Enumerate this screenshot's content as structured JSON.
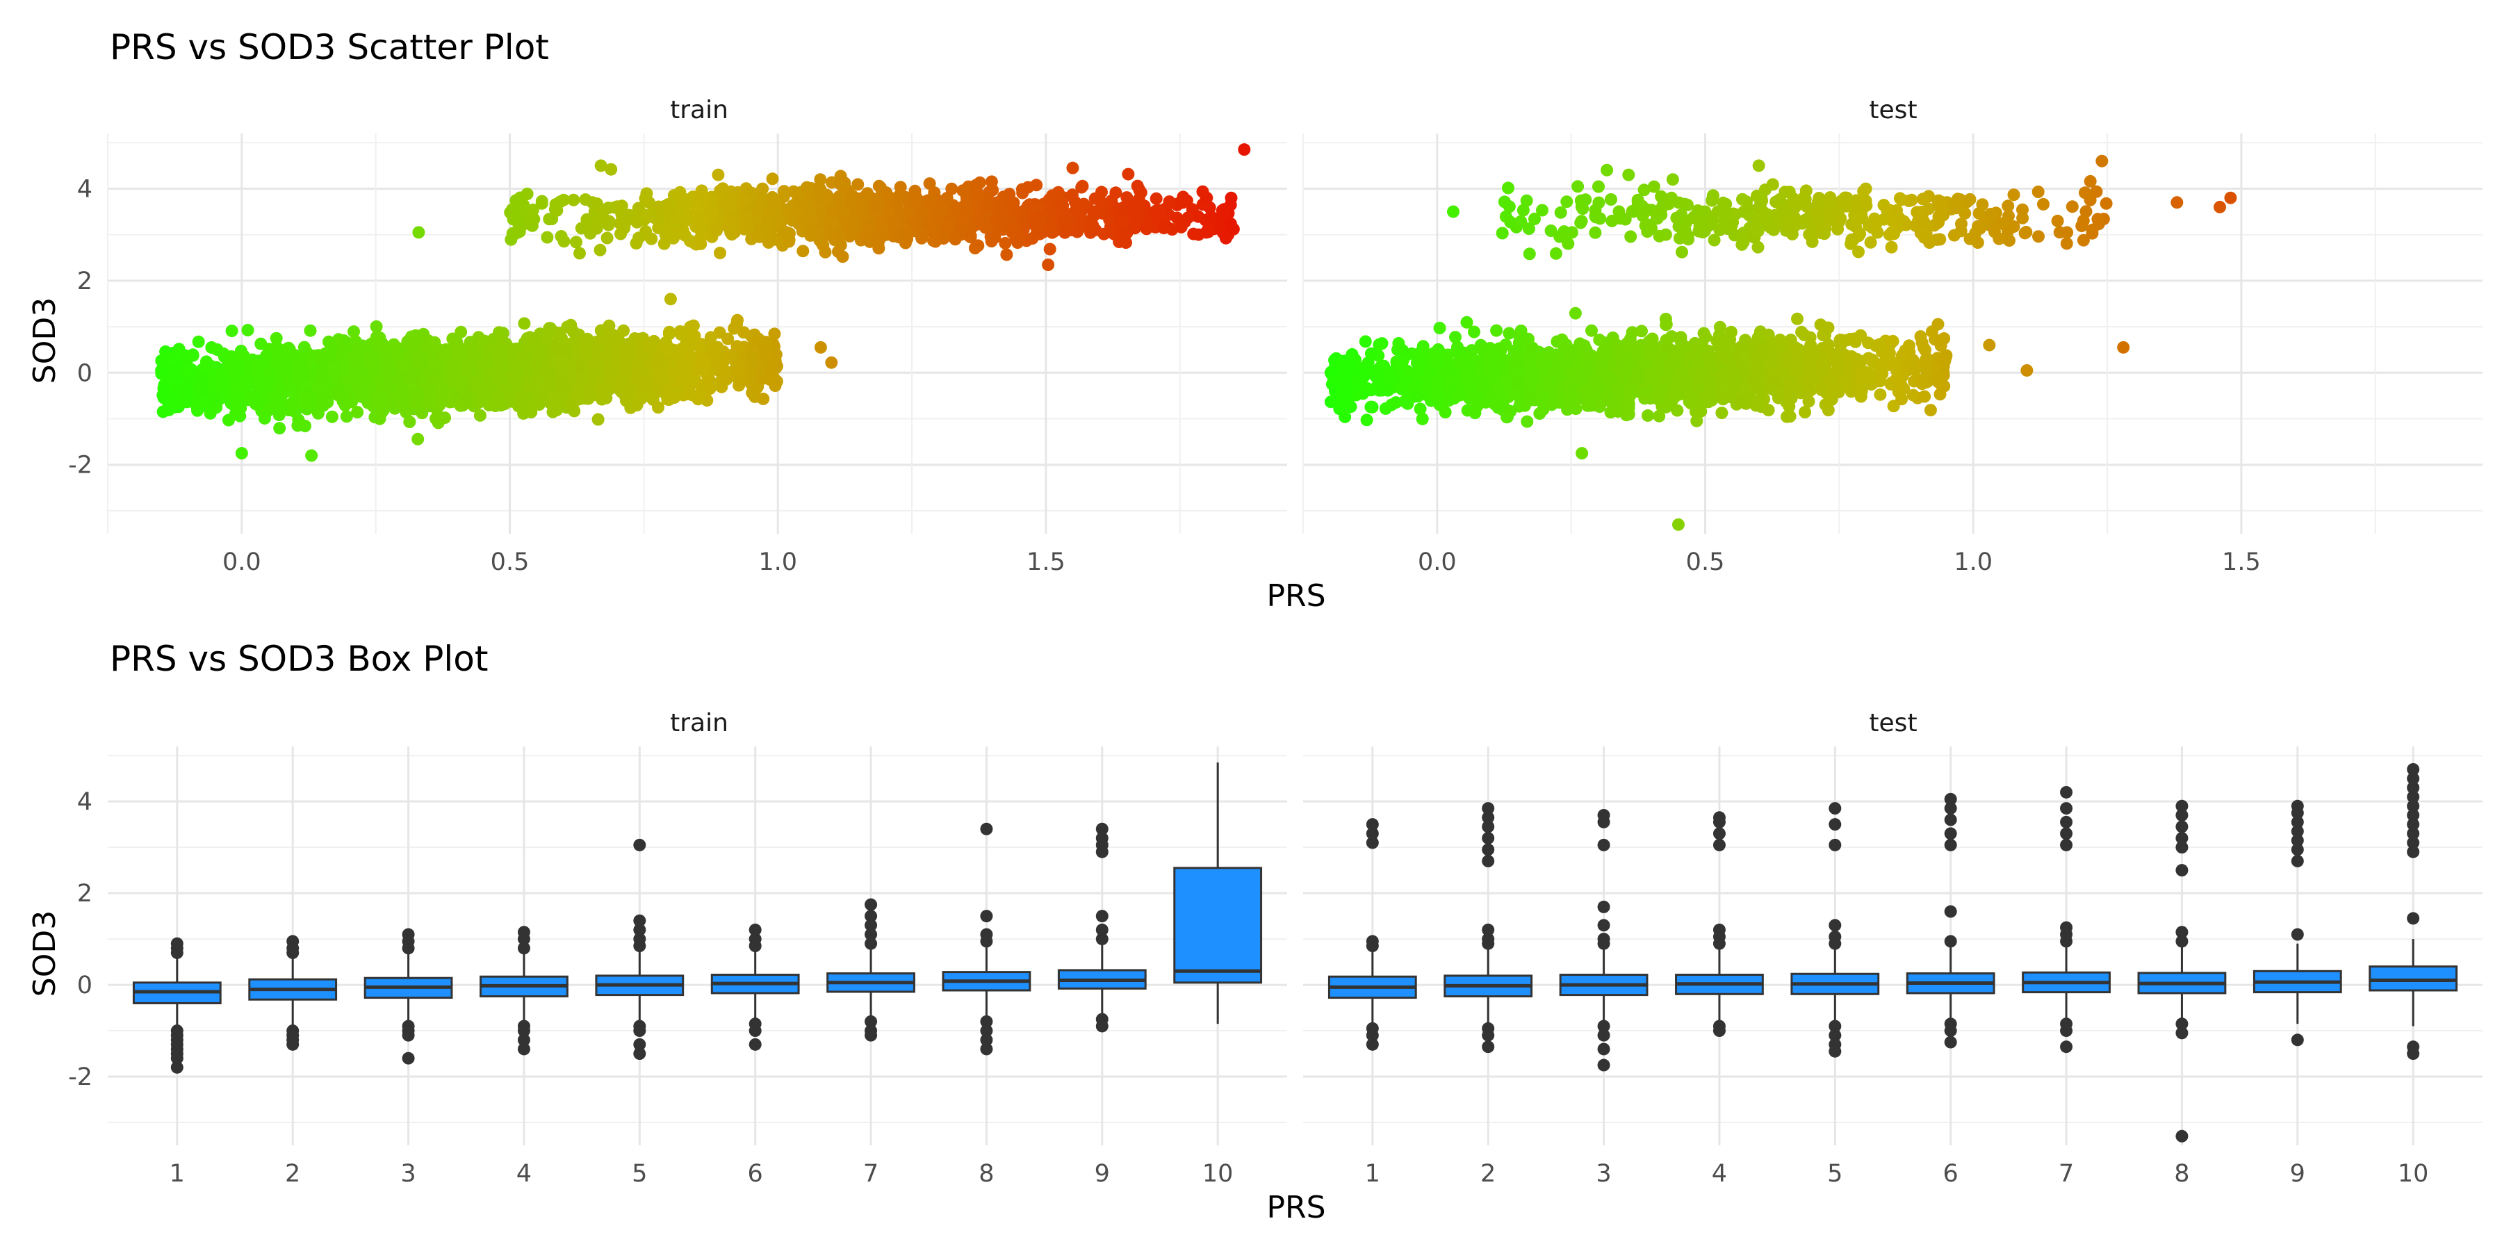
{
  "chart_data": [
    {
      "type": "scatter",
      "title": "PRS vs SOD3 Scatter Plot",
      "xlabel": "PRS",
      "ylabel": "SOD3",
      "xlim": [
        -0.25,
        1.95
      ],
      "ylim": [
        -3.5,
        5.2
      ],
      "x_ticks": [
        0.0,
        0.5,
        1.0,
        1.5
      ],
      "x_tick_labels": [
        "0.0",
        "0.5",
        "1.0",
        "1.5"
      ],
      "y_ticks": [
        -2,
        0,
        2,
        4
      ],
      "y_tick_labels": [
        "-2",
        "0",
        "2",
        "4"
      ],
      "color_scale": {
        "low": "#22ff00",
        "mid": "#c4b500",
        "high": "#e81000",
        "value_range": [
          -0.2,
          1.9
        ]
      },
      "grid": true,
      "panels": [
        {
          "name": "train",
          "clusters": [
            {
              "x_range": [
                -0.15,
                1.0
              ],
              "y_mean": 0.0,
              "y_slope": 0.6,
              "spread": 0.35
            },
            {
              "x_range": [
                0.5,
                1.85
              ],
              "y_mean": 3.4,
              "y_slope": 0.0,
              "spread": 0.3
            }
          ],
          "points": [
            {
              "x": 0.67,
              "y": 4.5
            },
            {
              "x": 0.33,
              "y": 3.05
            },
            {
              "x": 1.87,
              "y": 4.85
            },
            {
              "x": 1.85,
              "y": 3.12
            },
            {
              "x": 0.0,
              "y": -1.75
            },
            {
              "x": 1.08,
              "y": 0.55
            },
            {
              "x": 1.1,
              "y": 0.22
            },
            {
              "x": 0.8,
              "y": 1.6
            },
            {
              "x": -0.15,
              "y": 0.05
            },
            {
              "x": 0.13,
              "y": -1.8
            },
            {
              "x": 1.55,
              "y": 4.45
            },
            {
              "x": 1.8,
              "y": 3.8
            }
          ]
        },
        {
          "name": "test",
          "clusters": [
            {
              "x_range": [
                -0.2,
                0.95
              ],
              "y_mean": 0.0,
              "y_slope": 0.5,
              "spread": 0.35
            },
            {
              "x_range": [
                0.12,
                1.25
              ],
              "y_mean": 3.35,
              "y_slope": 0.0,
              "spread": 0.3
            }
          ],
          "points": [
            {
              "x": 0.03,
              "y": 3.5
            },
            {
              "x": 0.45,
              "y": -3.3
            },
            {
              "x": 1.24,
              "y": 4.6
            },
            {
              "x": 1.28,
              "y": 0.55
            },
            {
              "x": 1.38,
              "y": 3.7
            },
            {
              "x": 1.46,
              "y": 3.6
            },
            {
              "x": 1.48,
              "y": 3.8
            },
            {
              "x": 1.1,
              "y": 0.05
            },
            {
              "x": 1.03,
              "y": 0.6
            },
            {
              "x": -0.19,
              "y": 0.2
            },
            {
              "x": 0.27,
              "y": -1.75
            },
            {
              "x": 0.6,
              "y": 4.5
            }
          ]
        }
      ]
    },
    {
      "type": "box",
      "title": "PRS vs SOD3 Box Plot",
      "xlabel": "PRS",
      "ylabel": "SOD3",
      "categories": [
        "1",
        "2",
        "3",
        "4",
        "5",
        "6",
        "7",
        "8",
        "9",
        "10"
      ],
      "ylim": [
        -3.5,
        5.2
      ],
      "y_ticks": [
        -2,
        0,
        2,
        4
      ],
      "y_tick_labels": [
        "-2",
        "0",
        "2",
        "4"
      ],
      "box_color": "#1e90ff",
      "grid": true,
      "panels": [
        {
          "name": "train",
          "boxes": [
            {
              "q1": -0.4,
              "median": -0.15,
              "q3": 0.05,
              "whisker_low": -0.9,
              "whisker_high": 0.6,
              "outliers": [
                -1.0,
                -1.1,
                -1.2,
                -1.3,
                -1.4,
                -1.5,
                -1.6,
                -1.8,
                0.7,
                0.8,
                0.9
              ]
            },
            {
              "q1": -0.32,
              "median": -0.1,
              "q3": 0.12,
              "whisker_low": -0.9,
              "whisker_high": 0.6,
              "outliers": [
                -1.0,
                -1.1,
                -1.2,
                -1.3,
                0.7,
                0.8,
                0.95
              ]
            },
            {
              "q1": -0.28,
              "median": -0.05,
              "q3": 0.15,
              "whisker_low": -0.8,
              "whisker_high": 0.7,
              "outliers": [
                -0.9,
                -1.0,
                -1.1,
                -1.6,
                0.8,
                0.95,
                1.1
              ]
            },
            {
              "q1": -0.25,
              "median": -0.02,
              "q3": 0.18,
              "whisker_low": -0.8,
              "whisker_high": 0.7,
              "outliers": [
                -0.9,
                -1.0,
                -1.2,
                -1.4,
                0.8,
                1.0,
                1.15
              ]
            },
            {
              "q1": -0.22,
              "median": 0.0,
              "q3": 0.2,
              "whisker_low": -0.8,
              "whisker_high": 0.75,
              "outliers": [
                -0.9,
                -1.0,
                -1.3,
                -1.5,
                0.85,
                1.0,
                1.2,
                1.4,
                3.05
              ]
            },
            {
              "q1": -0.18,
              "median": 0.03,
              "q3": 0.22,
              "whisker_low": -0.75,
              "whisker_high": 0.75,
              "outliers": [
                -0.85,
                -1.0,
                -1.3,
                0.85,
                1.0,
                1.2
              ]
            },
            {
              "q1": -0.15,
              "median": 0.05,
              "q3": 0.25,
              "whisker_low": -0.7,
              "whisker_high": 0.8,
              "outliers": [
                -0.8,
                -1.0,
                -1.1,
                0.9,
                1.1,
                1.3,
                1.5,
                1.75
              ]
            },
            {
              "q1": -0.12,
              "median": 0.08,
              "q3": 0.28,
              "whisker_low": -0.7,
              "whisker_high": 0.85,
              "outliers": [
                -0.8,
                -1.0,
                -1.2,
                -1.4,
                0.95,
                1.1,
                1.5,
                3.4
              ]
            },
            {
              "q1": -0.08,
              "median": 0.1,
              "q3": 0.32,
              "whisker_low": -0.65,
              "whisker_high": 0.9,
              "outliers": [
                -0.75,
                -0.9,
                1.0,
                1.2,
                1.5,
                2.9,
                3.05,
                3.2,
                3.4
              ]
            },
            {
              "q1": 0.05,
              "median": 0.3,
              "q3": 2.55,
              "whisker_low": -0.85,
              "whisker_high": 4.85,
              "outliers": []
            }
          ]
        },
        {
          "name": "test",
          "boxes": [
            {
              "q1": -0.28,
              "median": -0.05,
              "q3": 0.18,
              "whisker_low": -0.85,
              "whisker_high": 0.75,
              "outliers": [
                -0.95,
                -1.1,
                -1.3,
                0.85,
                0.95,
                3.1,
                3.3,
                3.5
              ]
            },
            {
              "q1": -0.25,
              "median": -0.02,
              "q3": 0.2,
              "whisker_low": -0.85,
              "whisker_high": 0.8,
              "outliers": [
                -0.95,
                -1.1,
                -1.35,
                0.9,
                1.0,
                1.2,
                2.7,
                2.95,
                3.2,
                3.45,
                3.65,
                3.85
              ]
            },
            {
              "q1": -0.22,
              "median": 0.0,
              "q3": 0.22,
              "whisker_low": -0.8,
              "whisker_high": 0.8,
              "outliers": [
                -0.9,
                -1.1,
                -1.4,
                -1.75,
                0.9,
                1.0,
                1.3,
                1.7,
                3.05,
                3.55,
                3.7
              ]
            },
            {
              "q1": -0.2,
              "median": 0.02,
              "q3": 0.22,
              "whisker_low": -0.8,
              "whisker_high": 0.8,
              "outliers": [
                -0.9,
                -1.0,
                0.9,
                1.05,
                1.2,
                3.05,
                3.3,
                3.55,
                3.65
              ]
            },
            {
              "q1": -0.2,
              "median": 0.02,
              "q3": 0.24,
              "whisker_low": -0.8,
              "whisker_high": 0.8,
              "outliers": [
                -0.9,
                -1.1,
                -1.3,
                -1.45,
                0.9,
                1.05,
                1.3,
                3.05,
                3.5,
                3.85
              ]
            },
            {
              "q1": -0.18,
              "median": 0.04,
              "q3": 0.25,
              "whisker_low": -0.75,
              "whisker_high": 0.85,
              "outliers": [
                -0.85,
                -1.0,
                -1.25,
                0.95,
                1.6,
                3.05,
                3.3,
                3.6,
                3.85,
                4.05
              ]
            },
            {
              "q1": -0.16,
              "median": 0.05,
              "q3": 0.27,
              "whisker_low": -0.75,
              "whisker_high": 0.85,
              "outliers": [
                -0.85,
                -1.0,
                -1.35,
                0.95,
                1.1,
                1.25,
                3.05,
                3.3,
                3.55,
                3.85,
                4.2
              ]
            },
            {
              "q1": -0.18,
              "median": 0.03,
              "q3": 0.26,
              "whisker_low": -0.75,
              "whisker_high": 0.85,
              "outliers": [
                -0.85,
                -1.05,
                -3.3,
                0.95,
                1.15,
                2.5,
                3.0,
                3.2,
                3.45,
                3.7,
                3.9
              ]
            },
            {
              "q1": -0.16,
              "median": 0.06,
              "q3": 0.3,
              "whisker_low": -0.85,
              "whisker_high": 0.9,
              "outliers": [
                -1.2,
                1.1,
                2.7,
                2.95,
                3.15,
                3.35,
                3.55,
                3.75,
                3.9
              ]
            },
            {
              "q1": -0.12,
              "median": 0.1,
              "q3": 0.4,
              "whisker_low": -0.9,
              "whisker_high": 1.0,
              "outliers": [
                -1.35,
                -1.5,
                1.45,
                2.9,
                3.1,
                3.3,
                3.5,
                3.7,
                3.9,
                4.1,
                4.3,
                4.5,
                4.7
              ]
            }
          ]
        }
      ]
    }
  ]
}
